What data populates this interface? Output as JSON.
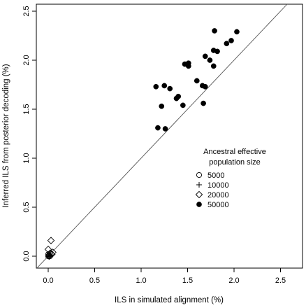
{
  "chart_data": {
    "type": "scatter",
    "xlabel": "ILS in simulated alignment (%)",
    "ylabel": "Inferred ILS from posterior decoding (%)",
    "xlim": [
      -0.1,
      2.6
    ],
    "ylim": [
      -0.05,
      2.6
    ],
    "x_ticks": [
      "0.0",
      "0.5",
      "1.0",
      "1.5",
      "2.0",
      "2.5"
    ],
    "y_ticks": [
      "0.0",
      "0.5",
      "1.0",
      "1.5",
      "2.0",
      "2.5"
    ],
    "reference_line": "y = x",
    "grid": false,
    "legend_placement": "right-middle",
    "legend": {
      "title_line1": "Ancestral effective",
      "title_line2": "population size",
      "entries": [
        {
          "label": "5000",
          "marker": "open-circle"
        },
        {
          "label": "10000",
          "marker": "plus"
        },
        {
          "label": "20000",
          "marker": "open-diamond"
        },
        {
          "label": "50000",
          "marker": "filled-circle"
        }
      ]
    },
    "series": [
      {
        "name": "5000",
        "marker": "open-circle",
        "points": [
          [
            0.0,
            0.0
          ],
          [
            0.01,
            0.01
          ],
          [
            0.0,
            0.02
          ],
          [
            0.02,
            0.0
          ]
        ]
      },
      {
        "name": "10000",
        "marker": "plus",
        "points": [
          [
            0.0,
            0.0
          ],
          [
            0.01,
            0.0
          ],
          [
            0.02,
            0.01
          ]
        ]
      },
      {
        "name": "20000",
        "marker": "open-diamond",
        "points": [
          [
            0.03,
            0.16
          ],
          [
            0.0,
            0.07
          ],
          [
            0.05,
            0.04
          ],
          [
            0.02,
            0.03
          ],
          [
            0.04,
            0.02
          ],
          [
            0.01,
            0.0
          ]
        ]
      },
      {
        "name": "50000",
        "marker": "filled-circle",
        "points": [
          [
            1.79,
            2.3
          ],
          [
            2.03,
            2.29
          ],
          [
            1.97,
            2.2
          ],
          [
            1.92,
            2.17
          ],
          [
            1.78,
            2.1
          ],
          [
            1.82,
            2.09
          ],
          [
            1.69,
            2.04
          ],
          [
            1.74,
            2.0
          ],
          [
            1.47,
            1.96
          ],
          [
            1.51,
            1.97
          ],
          [
            1.51,
            1.94
          ],
          [
            1.78,
            1.94
          ],
          [
            1.6,
            1.79
          ],
          [
            1.66,
            1.74
          ],
          [
            1.69,
            1.73
          ],
          [
            1.16,
            1.73
          ],
          [
            1.25,
            1.74
          ],
          [
            1.31,
            1.71
          ],
          [
            1.4,
            1.63
          ],
          [
            1.38,
            1.61
          ],
          [
            1.22,
            1.53
          ],
          [
            1.45,
            1.54
          ],
          [
            1.67,
            1.56
          ],
          [
            1.18,
            1.31
          ],
          [
            1.26,
            1.3
          ]
        ]
      }
    ]
  }
}
